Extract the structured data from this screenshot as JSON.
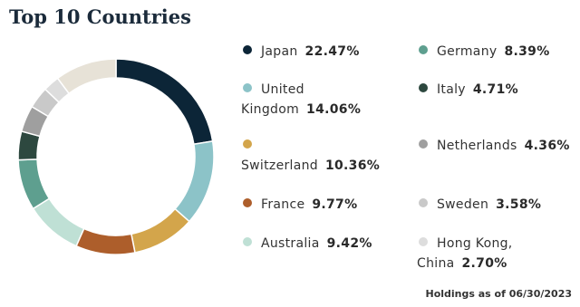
{
  "chart_data": {
    "type": "donut",
    "title": "Top 10 Countries",
    "categories": [
      "Japan",
      "United Kingdom",
      "Switzerland",
      "France",
      "Australia",
      "Germany",
      "Italy",
      "Netherlands",
      "Sweden",
      "Hong Kong, China",
      null
    ],
    "values": [
      22.47,
      14.06,
      10.36,
      9.77,
      9.42,
      8.39,
      4.71,
      4.36,
      3.58,
      2.7,
      10.18
    ],
    "value_labels": [
      "22.47%",
      "14.06%",
      "10.36%",
      "9.77%",
      "9.42%",
      "8.39%",
      "4.71%",
      "4.36%",
      "3.58%",
      "2.70%",
      null
    ],
    "colors": [
      "#0c2537",
      "#8cc3c8",
      "#d3a54b",
      "#ad5e2b",
      "#bfe0d5",
      "#5e9f8f",
      "#2d483f",
      "#9f9f9f",
      "#c9c9c9",
      "#dddddd",
      "#e7e2d7"
    ],
    "note": "Holdings as of 06/30/2023"
  }
}
